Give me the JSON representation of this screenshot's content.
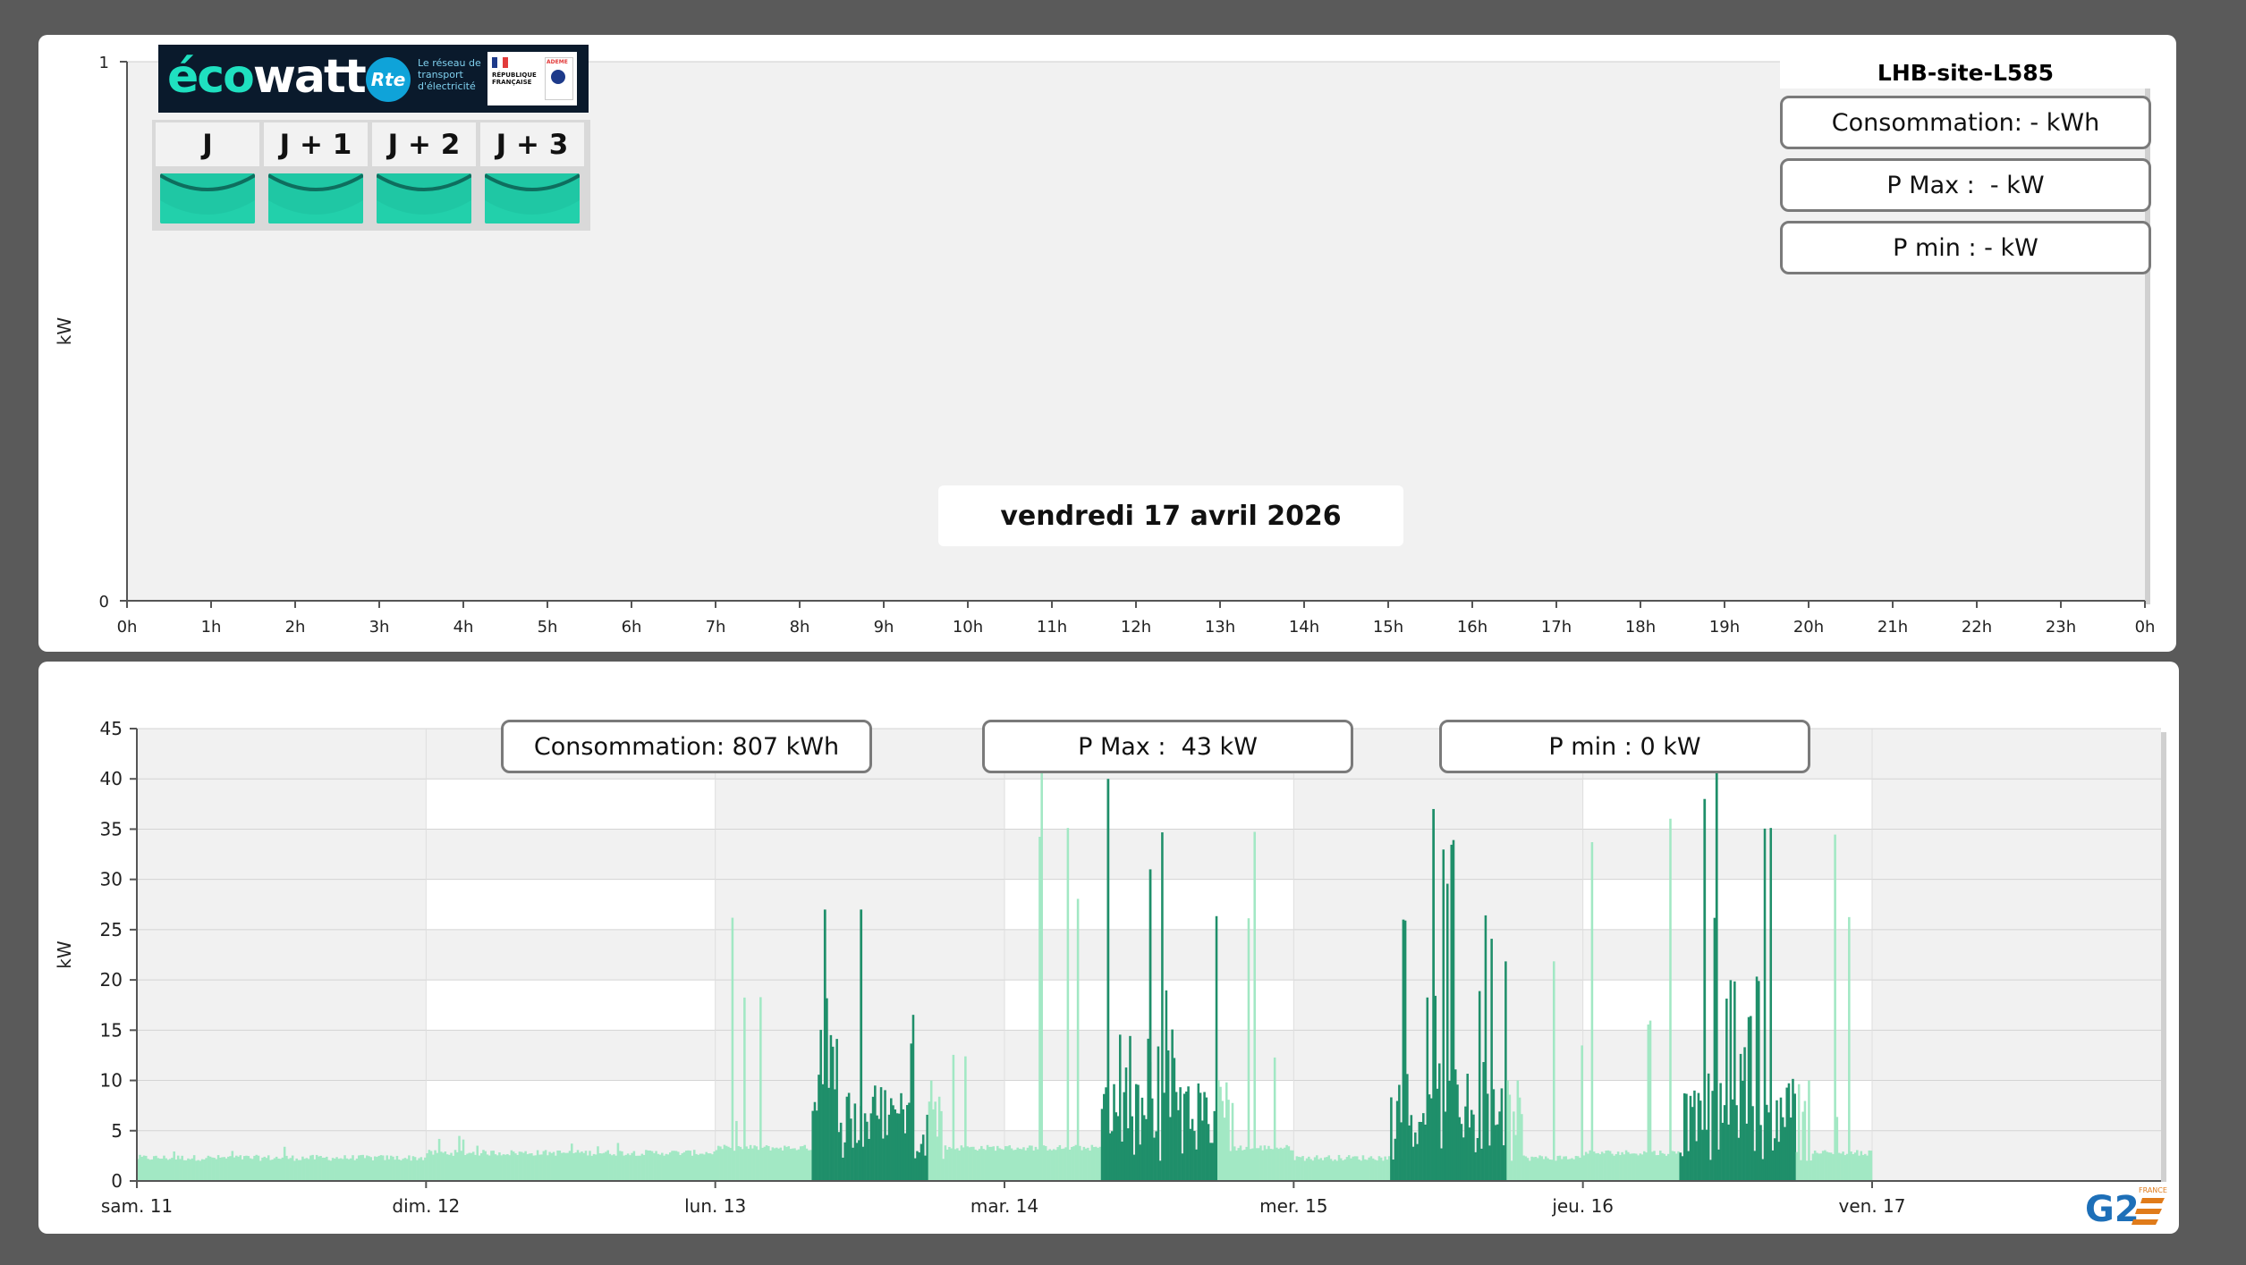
{
  "colors": {
    "bar_dark": "#1f8f6a",
    "bar_light": "#a2e8c4",
    "ecowatt_green": "#1fc7a4",
    "plot_bg": "#f1f1f1"
  },
  "top_panel": {
    "site_name": "LHB-site-L585",
    "consumption": "Consommation: - kWh",
    "pmax": "P Max :  - kW",
    "pmin": "P min : - kW",
    "date": "vendredi 17 avril 2026"
  },
  "ecowatt": {
    "brand_eco": "éco",
    "brand_watt": "watt",
    "rte_mark": "Rte",
    "rte_text": "Le réseau de transport d'électricité",
    "republic_text": "RÉPUBLIQUE FRANÇAISE",
    "ademe_label": "ADEME",
    "days": [
      {
        "label": "J",
        "signal": "green"
      },
      {
        "label": "J + 1",
        "signal": "green"
      },
      {
        "label": "J + 2",
        "signal": "green"
      },
      {
        "label": "J + 3",
        "signal": "green"
      }
    ]
  },
  "bottom_panel": {
    "consumption": "Consommation: 807 kWh",
    "pmax": "P Max :  43 kW",
    "pmin": "P min : 0 kW"
  },
  "brand_logo": {
    "text": "G2",
    "sub": "FRANCE"
  },
  "chart_data": [
    {
      "type": "bar",
      "title": "",
      "xlabel": "",
      "ylabel": "kW",
      "x_ticks": [
        "0h",
        "1h",
        "2h",
        "3h",
        "4h",
        "5h",
        "6h",
        "7h",
        "8h",
        "9h",
        "10h",
        "11h",
        "12h",
        "13h",
        "14h",
        "15h",
        "16h",
        "17h",
        "18h",
        "19h",
        "20h",
        "21h",
        "22h",
        "23h",
        "0h"
      ],
      "y_ticks": [
        0,
        1
      ],
      "ylim": [
        0,
        1
      ],
      "values": []
    },
    {
      "type": "bar",
      "title": "",
      "xlabel": "",
      "ylabel": "kW",
      "x_ticks": [
        "sam. 11",
        "dim. 12",
        "lun. 13",
        "mar. 14",
        "mer. 15",
        "jeu. 16",
        "ven. 17"
      ],
      "y_ticks": [
        0,
        5,
        10,
        15,
        20,
        25,
        30,
        35,
        40,
        45
      ],
      "ylim": [
        0,
        45
      ],
      "grid": true,
      "legend": "none",
      "interval": "10 min",
      "days": [
        {
          "day": "sam. 11",
          "base_kw": 2,
          "peak_kw": 4
        },
        {
          "day": "dim. 12",
          "base_kw": 2.5,
          "peak_kw": 5
        },
        {
          "day": "lun. 13",
          "base_kw": 3,
          "peak_kw": 27,
          "active_hours": [
            8,
            19
          ]
        },
        {
          "day": "mar. 14",
          "base_kw": 3,
          "peak_kw": 43,
          "active_hours": [
            8,
            19
          ]
        },
        {
          "day": "mer. 15",
          "base_kw": 2,
          "peak_kw": 37,
          "active_hours": [
            8,
            19
          ]
        },
        {
          "day": "jeu. 16",
          "base_kw": 2.5,
          "peak_kw": 41,
          "active_hours": [
            8,
            19
          ]
        }
      ],
      "peaks": [
        {
          "x": "lun. 13 09:00",
          "y": 27
        },
        {
          "x": "lun. 13 12:00",
          "y": 27
        },
        {
          "x": "mar. 14 08:30",
          "y": 40
        },
        {
          "x": "mar. 14 12:00",
          "y": 31
        },
        {
          "x": "mer. 15 09:00",
          "y": 26
        },
        {
          "x": "mer. 15 11:30",
          "y": 37
        },
        {
          "x": "jeu. 16 10:00",
          "y": 38
        },
        {
          "x": "jeu. 16 11:00",
          "y": 41
        }
      ]
    }
  ]
}
